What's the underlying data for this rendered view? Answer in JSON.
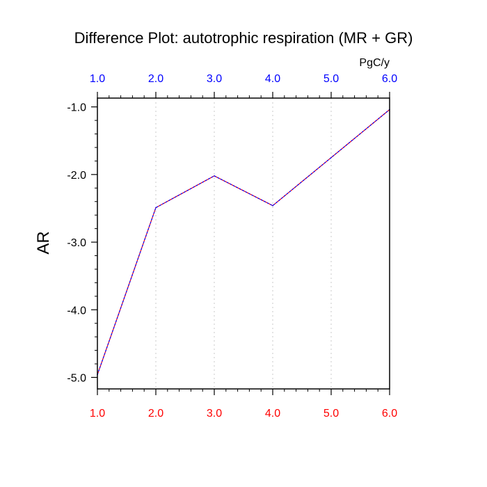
{
  "chart_data": {
    "type": "line",
    "title": "Difference Plot: autotrophic respiration (MR + GR)",
    "ylabel": "AR",
    "units_label": "PgC/y",
    "x": [
      1,
      2,
      3,
      4,
      5,
      6
    ],
    "xlim": [
      1,
      6
    ],
    "ylim": [
      -5.17,
      -0.87
    ],
    "x_ticks": [
      1,
      2,
      3,
      4,
      5,
      6
    ],
    "x_tick_labels": [
      "1.0",
      "2.0",
      "3.0",
      "4.0",
      "5.0",
      "6.0"
    ],
    "y_ticks": [
      -5,
      -4,
      -3,
      -2,
      -1
    ],
    "y_tick_labels": [
      "-5.0",
      "-4.0",
      "-3.0",
      "-2.0",
      "-1.0"
    ],
    "series": [
      {
        "values": [
          -4.96,
          -2.49,
          -2.02,
          -2.46,
          -1.75,
          -1.04
        ],
        "colors": [
          "#ff0000",
          "#0000ff"
        ]
      }
    ],
    "grid": "vertical dotted",
    "top_tick_color": "#0000ff",
    "bottom_tick_color": "#ff0000"
  }
}
